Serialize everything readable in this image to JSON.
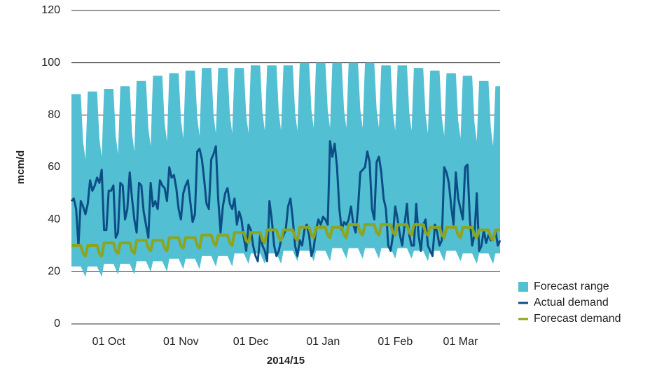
{
  "chart_data": {
    "type": "line",
    "y_label": "mcm/d",
    "x_label": "2014/15",
    "categories": [
      null,
      null,
      null,
      null,
      null,
      null,
      null,
      null,
      null,
      null,
      null,
      null,
      null,
      null,
      null,
      null,
      "01 Oct",
      null,
      null,
      null,
      null,
      null,
      null,
      null,
      null,
      null,
      null,
      null,
      null,
      null,
      null,
      null,
      null,
      null,
      null,
      null,
      null,
      null,
      null,
      null,
      null,
      null,
      null,
      null,
      null,
      null,
      null,
      "01 Nov",
      null,
      null,
      null,
      null,
      null,
      null,
      null,
      null,
      null,
      null,
      null,
      null,
      null,
      null,
      null,
      null,
      null,
      null,
      null,
      null,
      null,
      null,
      null,
      null,
      null,
      null,
      null,
      null,
      null,
      "01 Dec",
      null,
      null,
      null,
      null,
      null,
      null,
      null,
      null,
      null,
      null,
      null,
      null,
      null,
      null,
      null,
      null,
      null,
      null,
      null,
      null,
      null,
      null,
      null,
      null,
      null,
      null,
      null,
      null,
      null,
      null,
      "01 Jan",
      null,
      null,
      null,
      null,
      null,
      null,
      null,
      null,
      null,
      null,
      null,
      null,
      null,
      null,
      null,
      null,
      null,
      null,
      null,
      null,
      null,
      null,
      null,
      null,
      null,
      null,
      null,
      null,
      null,
      null,
      "01 Feb",
      null,
      null,
      null,
      null,
      null,
      null,
      null,
      null,
      null,
      null,
      null,
      null,
      null,
      null,
      null,
      null,
      null,
      null,
      null,
      null,
      null,
      null,
      null,
      null,
      null,
      null,
      null,
      "01 Mar",
      null,
      null,
      null,
      null,
      null,
      null,
      null,
      null,
      null,
      null,
      null,
      null,
      null,
      null,
      null,
      null,
      null
    ],
    "series": [
      {
        "name": "Forecast range",
        "color": "#52bfd3",
        "high": [
          88,
          88,
          88,
          88,
          88,
          70,
          63,
          89,
          89,
          89,
          89,
          89,
          71,
          64,
          90,
          90,
          90,
          90,
          90,
          72,
          65,
          91,
          91,
          91,
          91,
          91,
          73,
          66,
          93,
          93,
          93,
          93,
          93,
          75,
          68,
          95,
          95,
          95,
          95,
          95,
          77,
          70,
          96,
          96,
          96,
          96,
          96,
          78,
          71,
          97,
          97,
          97,
          97,
          97,
          79,
          72,
          98,
          98,
          98,
          98,
          98,
          80,
          73,
          98,
          98,
          98,
          98,
          98,
          80,
          73,
          98,
          98,
          98,
          98,
          98,
          80,
          73,
          99,
          99,
          99,
          99,
          99,
          81,
          74,
          99,
          99,
          99,
          99,
          99,
          81,
          74,
          99,
          99,
          99,
          99,
          99,
          81,
          74,
          100,
          100,
          100,
          100,
          100,
          82,
          75,
          100,
          100,
          100,
          100,
          100,
          82,
          75,
          100,
          100,
          100,
          100,
          100,
          82,
          75,
          100,
          100,
          100,
          100,
          100,
          82,
          75,
          100,
          100,
          100,
          100,
          100,
          82,
          75,
          99,
          99,
          99,
          99,
          99,
          81,
          74,
          99,
          99,
          99,
          99,
          99,
          81,
          74,
          98,
          98,
          98,
          98,
          98,
          80,
          73,
          97,
          97,
          97,
          97,
          97,
          79,
          72,
          96,
          96,
          96,
          96,
          96,
          78,
          71,
          95,
          95,
          95,
          95,
          95,
          77,
          70,
          93,
          93,
          93,
          93,
          93,
          75,
          68,
          91,
          91,
          91
        ],
        "low": [
          22,
          22,
          22,
          22,
          22,
          20,
          18,
          22,
          22,
          22,
          22,
          22,
          20,
          18,
          23,
          23,
          23,
          23,
          23,
          21,
          19,
          23,
          23,
          23,
          23,
          23,
          21,
          19,
          24,
          24,
          24,
          24,
          24,
          22,
          20,
          24,
          24,
          24,
          24,
          24,
          22,
          20,
          25,
          25,
          25,
          25,
          25,
          23,
          21,
          25,
          25,
          25,
          25,
          25,
          23,
          21,
          26,
          26,
          26,
          26,
          26,
          24,
          22,
          26,
          26,
          26,
          26,
          26,
          24,
          22,
          27,
          27,
          27,
          27,
          27,
          25,
          23,
          27,
          27,
          27,
          27,
          27,
          25,
          23,
          27,
          27,
          27,
          27,
          27,
          25,
          23,
          28,
          28,
          28,
          28,
          28,
          26,
          24,
          28,
          28,
          28,
          28,
          28,
          26,
          24,
          28,
          28,
          28,
          28,
          28,
          26,
          24,
          29,
          29,
          29,
          29,
          29,
          27,
          25,
          29,
          29,
          29,
          29,
          29,
          27,
          25,
          29,
          29,
          29,
          29,
          29,
          27,
          25,
          29,
          29,
          29,
          29,
          29,
          27,
          25,
          29,
          29,
          29,
          29,
          29,
          27,
          25,
          28,
          28,
          28,
          28,
          28,
          26,
          24,
          28,
          28,
          28,
          28,
          28,
          26,
          24,
          28,
          28,
          28,
          28,
          28,
          26,
          24,
          27,
          27,
          27,
          27,
          27,
          25,
          23,
          27,
          27,
          27,
          27,
          27,
          25,
          23,
          27,
          27,
          27
        ]
      },
      {
        "name": "Actual demand",
        "color": "#0d4d86",
        "values": [
          47,
          48,
          44,
          30,
          47,
          45,
          42,
          46,
          55,
          51,
          53,
          56,
          54,
          59,
          36,
          36,
          51,
          51,
          53,
          33,
          35,
          54,
          53,
          40,
          44,
          58,
          48,
          40,
          35,
          54,
          53,
          43,
          38,
          33,
          54,
          45,
          47,
          44,
          55,
          53,
          52,
          47,
          60,
          56,
          57,
          52,
          44,
          40,
          50,
          53,
          55,
          47,
          39,
          42,
          66,
          67,
          63,
          55,
          46,
          44,
          63,
          65,
          68,
          48,
          35,
          45,
          50,
          52,
          46,
          44,
          48,
          38,
          43,
          40,
          33,
          28,
          38,
          36,
          30,
          26,
          24,
          34,
          30,
          28,
          24,
          47,
          40,
          30,
          26,
          28,
          32,
          34,
          36,
          45,
          48,
          40,
          30,
          26,
          32,
          30,
          36,
          38,
          34,
          26,
          29,
          36,
          40,
          38,
          41,
          40,
          38,
          70,
          64,
          69,
          60,
          44,
          36,
          39,
          38,
          40,
          45,
          38,
          35,
          44,
          58,
          59,
          60,
          66,
          62,
          44,
          40,
          62,
          64,
          58,
          48,
          44,
          30,
          28,
          34,
          45,
          40,
          34,
          30,
          38,
          46,
          34,
          30,
          30,
          46,
          34,
          28,
          38,
          40,
          30,
          28,
          26,
          38,
          35,
          30,
          32,
          60,
          58,
          54,
          45,
          38,
          58,
          48,
          44,
          40,
          60,
          61,
          40,
          30,
          34,
          50,
          28,
          30,
          36,
          31,
          34,
          32,
          33,
          36,
          30,
          32
        ]
      },
      {
        "name": "Forecast demand",
        "color": "#8ca51f",
        "values": [
          30,
          30,
          30,
          30,
          30,
          27,
          26,
          30,
          30,
          30,
          30,
          30,
          27,
          26,
          31,
          31,
          31,
          31,
          31,
          28,
          27,
          31,
          31,
          31,
          31,
          31,
          28,
          27,
          32,
          32,
          32,
          32,
          32,
          29,
          28,
          32,
          32,
          32,
          32,
          32,
          29,
          28,
          33,
          33,
          33,
          33,
          33,
          30,
          29,
          33,
          33,
          33,
          33,
          33,
          30,
          29,
          34,
          34,
          34,
          34,
          34,
          31,
          30,
          34,
          34,
          34,
          34,
          34,
          31,
          30,
          35,
          35,
          35,
          35,
          35,
          32,
          31,
          35,
          35,
          35,
          35,
          35,
          32,
          31,
          36,
          36,
          36,
          36,
          36,
          33,
          32,
          36,
          36,
          36,
          36,
          36,
          33,
          32,
          37,
          37,
          37,
          37,
          37,
          34,
          33,
          37,
          37,
          37,
          37,
          37,
          34,
          33,
          37,
          37,
          37,
          37,
          37,
          34,
          33,
          38,
          38,
          38,
          38,
          38,
          35,
          34,
          38,
          38,
          38,
          38,
          38,
          35,
          34,
          38,
          38,
          38,
          38,
          38,
          35,
          34,
          38,
          38,
          38,
          38,
          38,
          35,
          34,
          38,
          38,
          38,
          38,
          38,
          35,
          34,
          37,
          37,
          37,
          37,
          37,
          34,
          33,
          37,
          37,
          37,
          37,
          37,
          34,
          33,
          37,
          37,
          37,
          37,
          37,
          34,
          33,
          36,
          36,
          36,
          36,
          36,
          33,
          32,
          36,
          36,
          36
        ]
      }
    ],
    "ylim": [
      0,
      120
    ],
    "yticks": [
      0,
      20,
      40,
      60,
      80,
      100,
      120
    ],
    "grid": true
  }
}
